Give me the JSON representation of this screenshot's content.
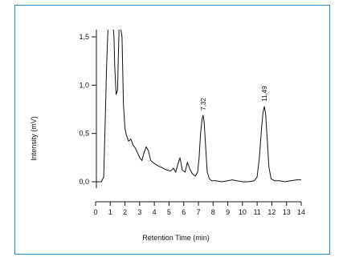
{
  "chart_data": {
    "type": "line",
    "xlabel": "Retention Time (min)",
    "ylabel": "Intensity (mV)",
    "xlim": [
      0,
      14
    ],
    "ylim": [
      -0.1,
      1.6
    ],
    "x_ticks": [
      0,
      1,
      2,
      3,
      4,
      5,
      6,
      7,
      8,
      9,
      10,
      11,
      12,
      13,
      14
    ],
    "x_tick_labels": [
      "0",
      "1",
      "2",
      "3",
      "4",
      "5",
      "6",
      "7",
      "8",
      "9",
      "10",
      "11",
      "12",
      "13",
      "14"
    ],
    "y_ticks": [
      0.0,
      0.5,
      1.0,
      1.5
    ],
    "y_tick_labels": [
      "0,0",
      "0,5",
      "1,0",
      "1,5"
    ],
    "grid": false,
    "peak_labels": [
      {
        "x": 7.32,
        "y": 0.69,
        "text": "7,32"
      },
      {
        "x": 11.49,
        "y": 0.78,
        "text": "11,49"
      }
    ],
    "series": [
      {
        "color": "#111111",
        "x": [
          0.0,
          0.4,
          0.55,
          0.65,
          0.75,
          0.85,
          0.95,
          1.05,
          1.15,
          1.2,
          1.25,
          1.3,
          1.4,
          1.5,
          1.55,
          1.6,
          1.7,
          1.8,
          1.9,
          2.0,
          2.1,
          2.25,
          2.4,
          2.55,
          2.7,
          2.85,
          3.0,
          3.15,
          3.3,
          3.45,
          3.6,
          3.75,
          3.9,
          4.1,
          4.3,
          4.5,
          4.7,
          4.9,
          5.1,
          5.3,
          5.45,
          5.6,
          5.75,
          5.9,
          6.1,
          6.25,
          6.45,
          6.6,
          6.8,
          6.95,
          7.05,
          7.15,
          7.25,
          7.32,
          7.4,
          7.5,
          7.6,
          7.75,
          7.9,
          8.2,
          8.6,
          9.0,
          9.3,
          9.6,
          10.0,
          10.4,
          10.8,
          11.0,
          11.15,
          11.3,
          11.4,
          11.49,
          11.58,
          11.68,
          11.8,
          11.95,
          12.2,
          12.5,
          12.9,
          13.3,
          13.7,
          14.0
        ],
        "y": [
          0.0,
          0.0,
          0.05,
          0.6,
          1.2,
          1.6,
          1.6,
          1.6,
          1.6,
          1.6,
          1.5,
          1.2,
          0.9,
          0.95,
          1.3,
          1.6,
          1.6,
          1.5,
          0.8,
          0.55,
          0.48,
          0.42,
          0.44,
          0.38,
          0.35,
          0.3,
          0.25,
          0.22,
          0.3,
          0.36,
          0.32,
          0.22,
          0.2,
          0.18,
          0.16,
          0.15,
          0.13,
          0.12,
          0.11,
          0.14,
          0.1,
          0.18,
          0.25,
          0.12,
          0.1,
          0.2,
          0.12,
          0.08,
          0.06,
          0.1,
          0.25,
          0.5,
          0.65,
          0.69,
          0.6,
          0.35,
          0.1,
          0.03,
          0.01,
          0.01,
          0.0,
          0.01,
          0.02,
          0.01,
          0.0,
          0.0,
          0.01,
          0.05,
          0.25,
          0.55,
          0.72,
          0.78,
          0.7,
          0.45,
          0.15,
          0.03,
          0.01,
          0.01,
          0.0,
          0.01,
          0.02,
          0.02
        ]
      }
    ]
  }
}
